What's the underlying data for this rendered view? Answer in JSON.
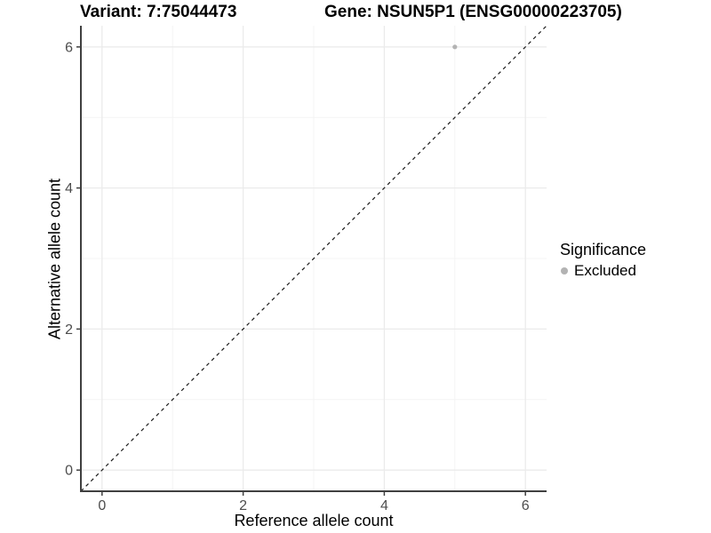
{
  "header": {
    "title_left": "Variant: 7:75044473",
    "title_right": "Gene: NSUN5P1 (ENSG00000223705)"
  },
  "chart_data": {
    "type": "scatter",
    "title_left": "Variant: 7:75044473",
    "title_right": "Gene: NSUN5P1 (ENSG00000223705)",
    "xlabel": "Reference allele count",
    "ylabel": "Alternative allele count",
    "x_ticks": [
      0,
      2,
      4,
      6
    ],
    "y_ticks": [
      0,
      2,
      4,
      6
    ],
    "x_minor_ticks": [
      1,
      3,
      5
    ],
    "y_minor_ticks": [
      1,
      3,
      5
    ],
    "xlim": [
      -0.3,
      6.3
    ],
    "ylim": [
      -0.3,
      6.3
    ],
    "grid": "major+minor",
    "identity_line": {
      "style": "dashed",
      "equation": "y = x"
    },
    "series": [
      {
        "name": "Excluded",
        "color": "#b3b3b3",
        "points": [
          {
            "x": 5,
            "y": 6
          }
        ]
      }
    ],
    "legend": {
      "title": "Significance",
      "position": "right",
      "items": [
        {
          "label": "Excluded",
          "color": "#b3b3b3"
        }
      ]
    }
  },
  "colors": {
    "background": "#ffffff",
    "grid_major": "#ebebeb",
    "grid_minor": "#f4f4f4",
    "axis_line": "#404040",
    "tick_mark": "#404040",
    "tick_label": "#4d4d4d",
    "text": "#000000",
    "point": "#b3b3b3",
    "identity_line": "#1a1a1a"
  }
}
